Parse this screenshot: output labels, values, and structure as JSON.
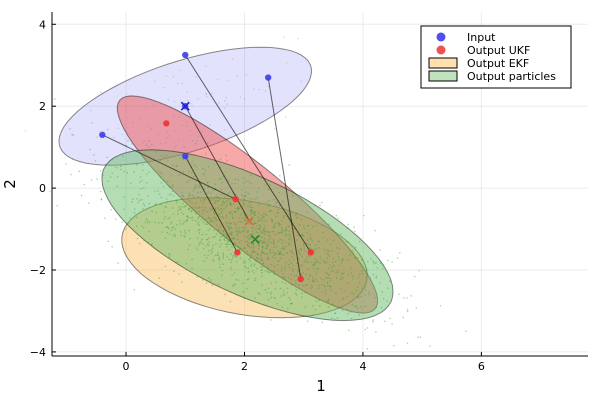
{
  "chart_data": {
    "type": "scatter",
    "title": "",
    "xlabel": "1",
    "ylabel": "2",
    "xlim": [
      -1.25,
      7.8
    ],
    "ylim": [
      -4.1,
      4.3
    ],
    "xticks": [
      0,
      2,
      4,
      6
    ],
    "yticks": [
      -4,
      -2,
      0,
      2,
      4
    ],
    "xtick_labels": [
      "0",
      "2",
      "4",
      "6"
    ],
    "ytick_labels": [
      "−4",
      "−2",
      "0",
      "2",
      "4"
    ],
    "grid": true,
    "legend_position": "top-right",
    "legend": [
      {
        "label": "Input",
        "kind": "marker",
        "color": "#3d3df0"
      },
      {
        "label": "Output UKF",
        "kind": "marker",
        "color": "#f03d3d"
      },
      {
        "label": "Output EKF",
        "kind": "patch",
        "color": "#ffe0b0"
      },
      {
        "label": "Output particles",
        "kind": "patch",
        "color": "#bfe3bf"
      }
    ],
    "input_points": [
      [
        -0.4,
        1.3
      ],
      [
        1.0,
        3.25
      ],
      [
        2.4,
        2.7
      ],
      [
        1.0,
        0.78
      ],
      [
        1.0,
        2.0
      ]
    ],
    "input_mean": [
      1.0,
      2.0
    ],
    "ukf_points": [
      [
        1.85,
        -0.27
      ],
      [
        3.12,
        -1.57
      ],
      [
        2.95,
        -2.22
      ],
      [
        1.88,
        -1.57
      ],
      [
        0.68,
        1.58
      ]
    ],
    "ukf_mean": [
      2.08,
      -0.8
    ],
    "particle_mean": [
      2.18,
      -1.25
    ],
    "ellipses": [
      {
        "name": "input",
        "cx": 1.0,
        "cy": 2.0,
        "rx": 2.35,
        "ry": 1.05,
        "angle_deg": 28,
        "fill": "#7b7bf0",
        "opacity": 0.22
      },
      {
        "name": "ekf",
        "cx": 2.0,
        "cy": -1.7,
        "rx": 2.15,
        "ry": 1.35,
        "angle_deg": -20,
        "fill": "#f8b84e",
        "opacity": 0.42
      },
      {
        "name": "ukf",
        "cx": 2.05,
        "cy": -0.4,
        "rx": 3.35,
        "ry": 0.8,
        "angle_deg": -51,
        "fill": "#ee4b4b",
        "opacity": 0.48
      },
      {
        "name": "particles",
        "cx": 2.05,
        "cy": -1.15,
        "rx": 2.95,
        "ry": 1.3,
        "angle_deg": -38,
        "fill": "#62b862",
        "opacity": 0.48
      }
    ],
    "connections": [
      [
        [
          -0.4,
          1.3
        ],
        [
          1.85,
          -0.27
        ]
      ],
      [
        [
          1.0,
          3.25
        ],
        [
          3.12,
          -1.57
        ]
      ],
      [
        [
          2.4,
          2.7
        ],
        [
          2.95,
          -2.22
        ]
      ],
      [
        [
          1.0,
          0.78
        ],
        [
          1.88,
          -1.57
        ]
      ],
      [
        [
          1.0,
          2.0
        ],
        [
          2.08,
          -0.8
        ]
      ]
    ],
    "particle_cloud": {
      "center": [
        2.1,
        -1.2
      ],
      "count": 1400
    }
  }
}
